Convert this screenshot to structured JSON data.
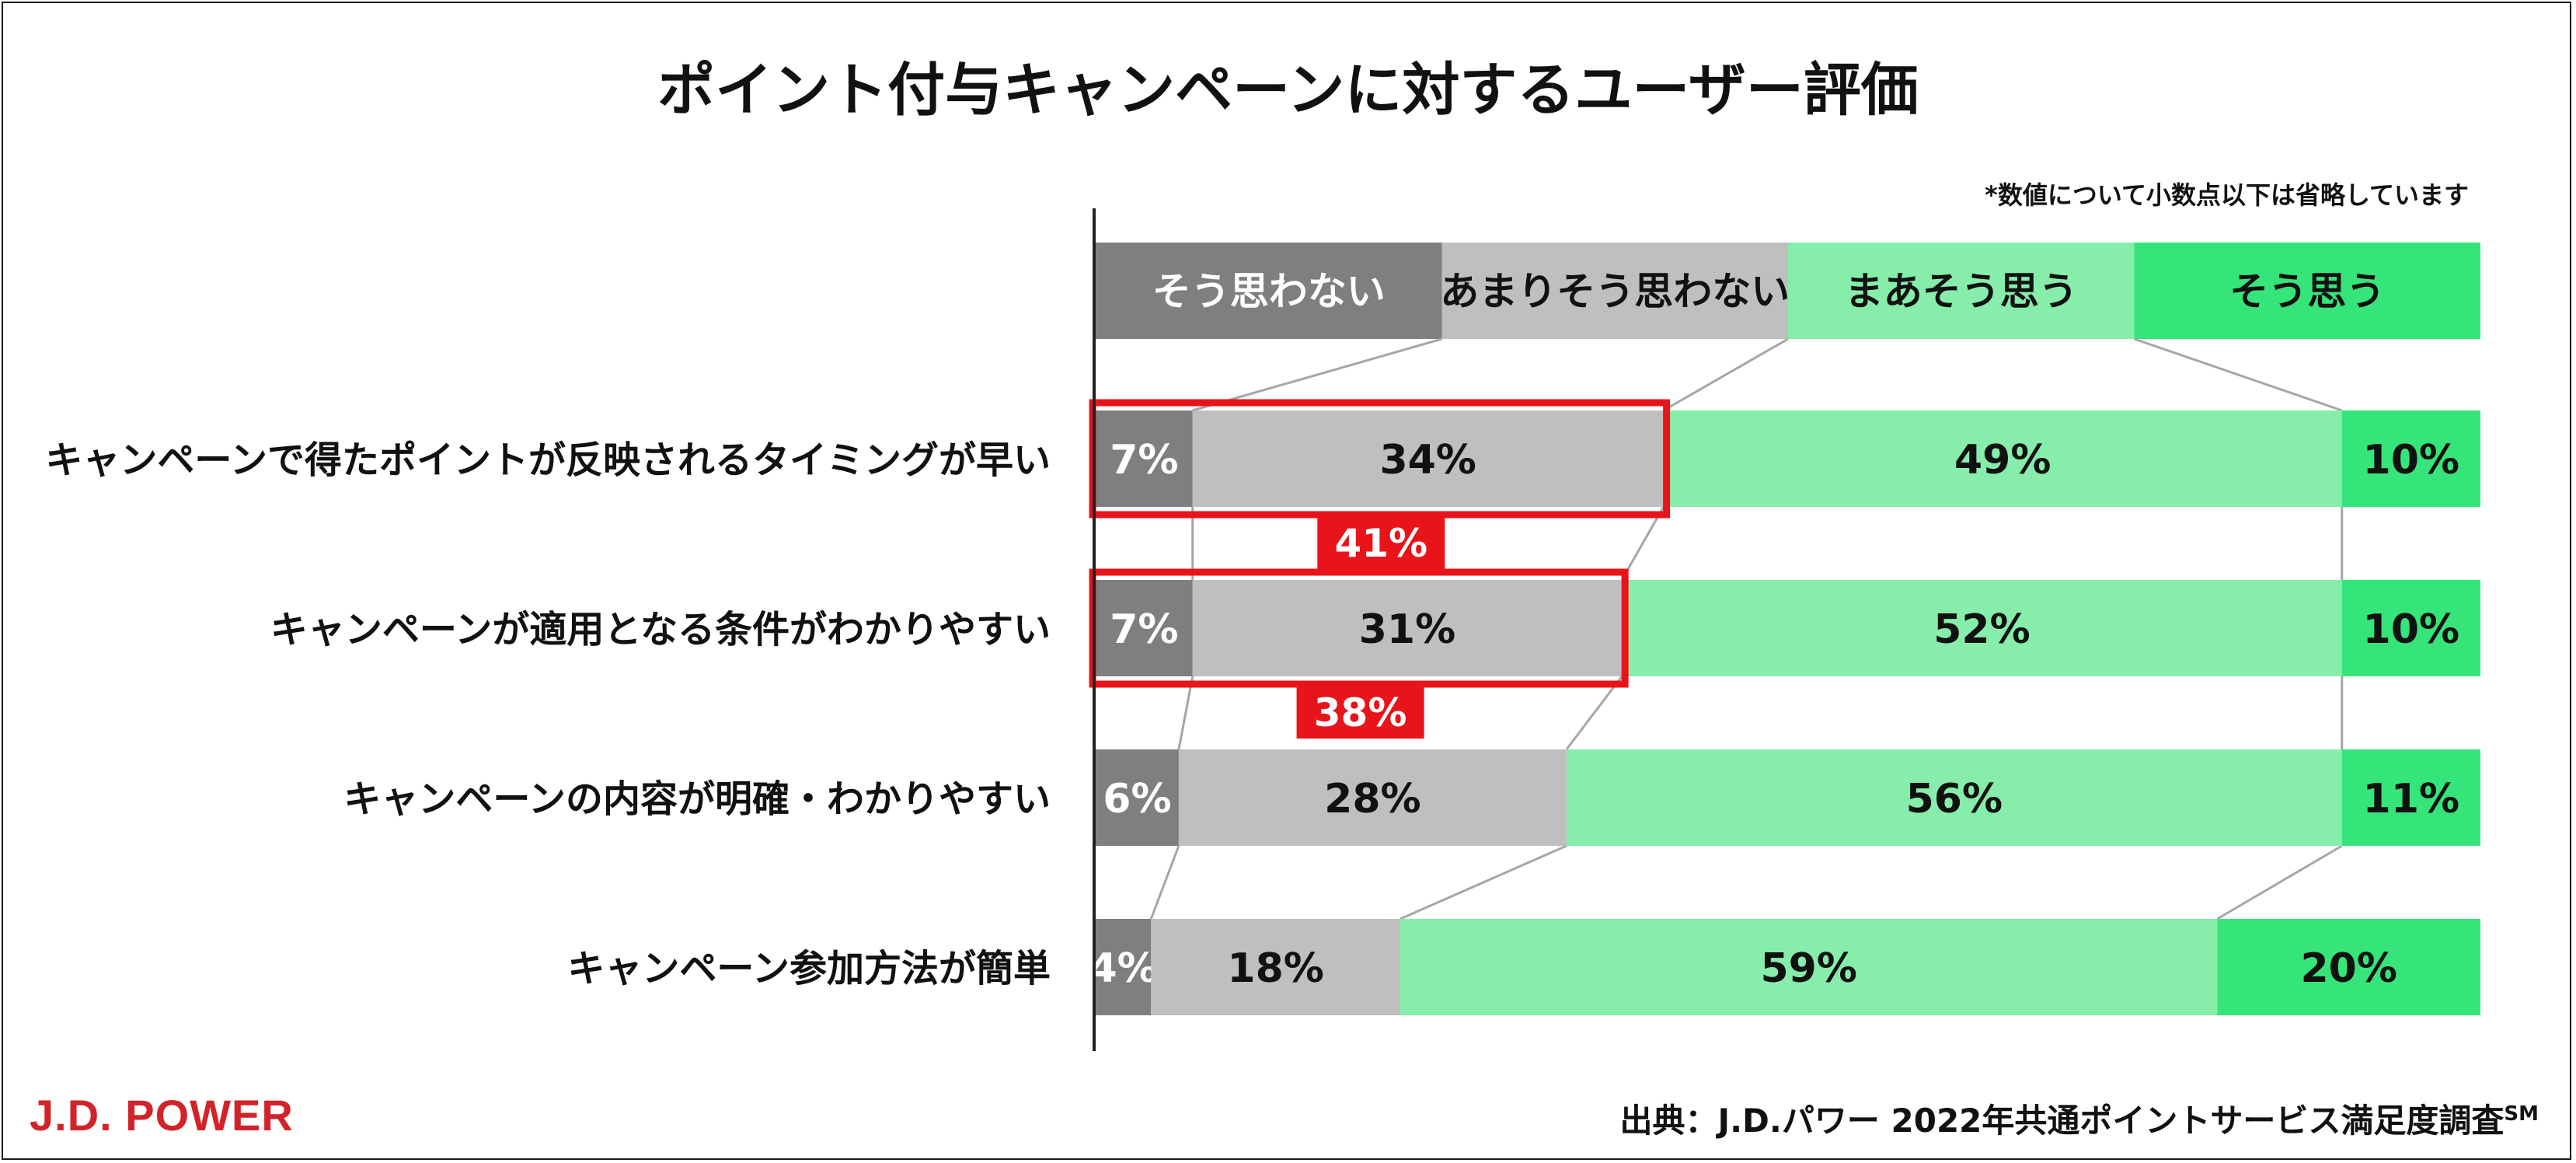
{
  "title": "ポイント付与キャンペーンに対するユーザー評価",
  "note": "*数値について小数点以下は省略しています",
  "logo": "J.D. POWER",
  "source": {
    "text": "出典：J.D.パワー 2022年共通ポイントサービス満足度調査",
    "superscript": "SM"
  },
  "colors": {
    "strongly_disagree": "#7f7f7f",
    "somewhat_disagree": "#bfbfbf",
    "somewhat_agree": "#86eeaa",
    "strongly_agree": "#36e57a",
    "highlight": "#e8141a"
  },
  "chart_data": {
    "type": "bar",
    "orientation": "horizontal",
    "stacked": true,
    "title": "ポイント付与キャンペーンに対するユーザー評価",
    "xlim": [
      0,
      100
    ],
    "unit": "%",
    "legend_position": "top",
    "categories": [
      "キャンペーンで得たポイントが反映されるタイミングが早い",
      "キャンペーンが適用となる条件がわかりやすい",
      "キャンペーンの内容が明確・わかりやすい",
      "キャンペーン参加方法が簡単"
    ],
    "series": [
      {
        "name": "そう思わない",
        "values": [
          7,
          7,
          6,
          4
        ]
      },
      {
        "name": "あまりそう思わない",
        "values": [
          34,
          31,
          28,
          18
        ]
      },
      {
        "name": "まあそう思う",
        "values": [
          49,
          52,
          56,
          59
        ]
      },
      {
        "name": "そう思う",
        "values": [
          10,
          10,
          11,
          20
        ]
      }
    ],
    "annotations": [
      {
        "row": 0,
        "label": "41%",
        "covers_series": [
          0,
          1
        ]
      },
      {
        "row": 1,
        "label": "38%",
        "covers_series": [
          0,
          1
        ]
      }
    ]
  }
}
